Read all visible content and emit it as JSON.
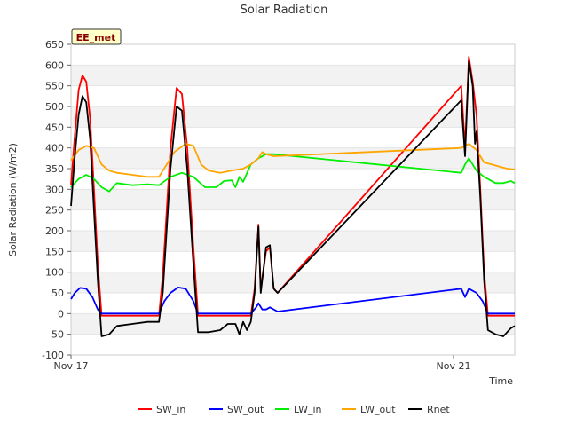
{
  "chart_data": {
    "type": "line",
    "title": "Solar Radiation",
    "xlabel": "Time",
    "ylabel": "Solar Radiation (W/m2)",
    "badge": "EE_met",
    "xlim": [
      0,
      5.8
    ],
    "ylim": [
      -100,
      650
    ],
    "yticks": [
      -100,
      -50,
      0,
      50,
      100,
      150,
      200,
      250,
      300,
      350,
      400,
      450,
      500,
      550,
      600,
      650
    ],
    "xticks": [
      {
        "value": 0,
        "label": "Nov 17"
      },
      {
        "value": 5.0,
        "label": "Nov 21"
      }
    ],
    "series": [
      {
        "name": "SW_in",
        "color": "#ff0000",
        "points": [
          [
            0,
            310
          ],
          [
            0.05,
            430
          ],
          [
            0.1,
            540
          ],
          [
            0.15,
            575
          ],
          [
            0.2,
            560
          ],
          [
            0.25,
            470
          ],
          [
            0.3,
            300
          ],
          [
            0.35,
            120
          ],
          [
            0.4,
            -5
          ],
          [
            1.15,
            -5
          ],
          [
            1.2,
            90
          ],
          [
            1.3,
            400
          ],
          [
            1.38,
            545
          ],
          [
            1.45,
            530
          ],
          [
            1.52,
            400
          ],
          [
            1.6,
            160
          ],
          [
            1.66,
            -5
          ],
          [
            2.35,
            -5
          ],
          [
            2.4,
            60
          ],
          [
            2.45,
            215
          ],
          [
            2.48,
            60
          ],
          [
            2.55,
            150
          ],
          [
            2.6,
            160
          ],
          [
            2.65,
            60
          ],
          [
            2.7,
            50
          ],
          [
            5.1,
            550
          ],
          [
            5.15,
            400
          ],
          [
            5.2,
            620
          ],
          [
            5.25,
            560
          ],
          [
            5.3,
            480
          ],
          [
            5.35,
            300
          ],
          [
            5.4,
            100
          ],
          [
            5.45,
            -5
          ],
          [
            5.8,
            -5
          ]
        ]
      },
      {
        "name": "SW_out",
        "color": "#0000ff",
        "points": [
          [
            0,
            35
          ],
          [
            0.05,
            50
          ],
          [
            0.12,
            62
          ],
          [
            0.2,
            60
          ],
          [
            0.28,
            40
          ],
          [
            0.35,
            10
          ],
          [
            0.4,
            0
          ],
          [
            1.15,
            0
          ],
          [
            1.22,
            30
          ],
          [
            1.3,
            50
          ],
          [
            1.4,
            63
          ],
          [
            1.5,
            60
          ],
          [
            1.6,
            30
          ],
          [
            1.66,
            0
          ],
          [
            2.35,
            0
          ],
          [
            2.42,
            15
          ],
          [
            2.45,
            25
          ],
          [
            2.5,
            10
          ],
          [
            2.55,
            10
          ],
          [
            2.6,
            15
          ],
          [
            2.7,
            5
          ],
          [
            5.1,
            60
          ],
          [
            5.15,
            40
          ],
          [
            5.2,
            60
          ],
          [
            5.3,
            50
          ],
          [
            5.38,
            30
          ],
          [
            5.45,
            0
          ],
          [
            5.8,
            0
          ]
        ]
      },
      {
        "name": "LW_in",
        "color": "#00ee00",
        "points": [
          [
            0,
            305
          ],
          [
            0.1,
            325
          ],
          [
            0.2,
            335
          ],
          [
            0.3,
            325
          ],
          [
            0.4,
            305
          ],
          [
            0.5,
            295
          ],
          [
            0.6,
            315
          ],
          [
            0.8,
            310
          ],
          [
            1.0,
            312
          ],
          [
            1.15,
            310
          ],
          [
            1.3,
            330
          ],
          [
            1.45,
            340
          ],
          [
            1.6,
            330
          ],
          [
            1.75,
            305
          ],
          [
            1.9,
            305
          ],
          [
            2.0,
            320
          ],
          [
            2.1,
            322
          ],
          [
            2.15,
            305
          ],
          [
            2.2,
            330
          ],
          [
            2.25,
            318
          ],
          [
            2.35,
            360
          ],
          [
            2.45,
            375
          ],
          [
            2.55,
            385
          ],
          [
            2.65,
            385
          ],
          [
            5.1,
            340
          ],
          [
            5.15,
            360
          ],
          [
            5.2,
            375
          ],
          [
            5.3,
            345
          ],
          [
            5.4,
            330
          ],
          [
            5.55,
            315
          ],
          [
            5.65,
            315
          ],
          [
            5.75,
            320
          ],
          [
            5.8,
            315
          ]
        ]
      },
      {
        "name": "LW_out",
        "color": "#ffa500",
        "points": [
          [
            0,
            370
          ],
          [
            0.1,
            395
          ],
          [
            0.2,
            405
          ],
          [
            0.3,
            400
          ],
          [
            0.4,
            360
          ],
          [
            0.5,
            345
          ],
          [
            0.6,
            340
          ],
          [
            0.8,
            335
          ],
          [
            1.0,
            330
          ],
          [
            1.15,
            330
          ],
          [
            1.25,
            360
          ],
          [
            1.35,
            390
          ],
          [
            1.5,
            410
          ],
          [
            1.6,
            405
          ],
          [
            1.7,
            360
          ],
          [
            1.8,
            345
          ],
          [
            1.95,
            340
          ],
          [
            2.1,
            345
          ],
          [
            2.25,
            350
          ],
          [
            2.35,
            360
          ],
          [
            2.45,
            375
          ],
          [
            2.5,
            390
          ],
          [
            2.55,
            385
          ],
          [
            2.65,
            380
          ],
          [
            5.1,
            400
          ],
          [
            5.2,
            410
          ],
          [
            5.3,
            395
          ],
          [
            5.4,
            365
          ],
          [
            5.5,
            360
          ],
          [
            5.6,
            355
          ],
          [
            5.7,
            350
          ],
          [
            5.8,
            348
          ]
        ]
      },
      {
        "name": "Rnet",
        "color": "#000000",
        "points": [
          [
            0,
            260
          ],
          [
            0.05,
            380
          ],
          [
            0.1,
            480
          ],
          [
            0.15,
            525
          ],
          [
            0.2,
            510
          ],
          [
            0.25,
            420
          ],
          [
            0.3,
            250
          ],
          [
            0.35,
            80
          ],
          [
            0.4,
            -55
          ],
          [
            0.5,
            -50
          ],
          [
            0.6,
            -30
          ],
          [
            0.8,
            -25
          ],
          [
            1.0,
            -20
          ],
          [
            1.15,
            -20
          ],
          [
            1.2,
            50
          ],
          [
            1.3,
            350
          ],
          [
            1.38,
            500
          ],
          [
            1.45,
            490
          ],
          [
            1.52,
            350
          ],
          [
            1.6,
            120
          ],
          [
            1.66,
            -45
          ],
          [
            1.8,
            -45
          ],
          [
            1.95,
            -40
          ],
          [
            2.05,
            -25
          ],
          [
            2.15,
            -25
          ],
          [
            2.2,
            -50
          ],
          [
            2.25,
            -20
          ],
          [
            2.3,
            -40
          ],
          [
            2.35,
            -20
          ],
          [
            2.4,
            50
          ],
          [
            2.45,
            210
          ],
          [
            2.48,
            50
          ],
          [
            2.55,
            160
          ],
          [
            2.6,
            165
          ],
          [
            2.65,
            60
          ],
          [
            2.7,
            50
          ],
          [
            5.1,
            515
          ],
          [
            5.15,
            380
          ],
          [
            5.2,
            610
          ],
          [
            5.25,
            550
          ],
          [
            5.28,
            410
          ],
          [
            5.3,
            440
          ],
          [
            5.35,
            280
          ],
          [
            5.4,
            80
          ],
          [
            5.45,
            -40
          ],
          [
            5.55,
            -50
          ],
          [
            5.65,
            -55
          ],
          [
            5.75,
            -35
          ],
          [
            5.8,
            -30
          ]
        ]
      }
    ]
  }
}
